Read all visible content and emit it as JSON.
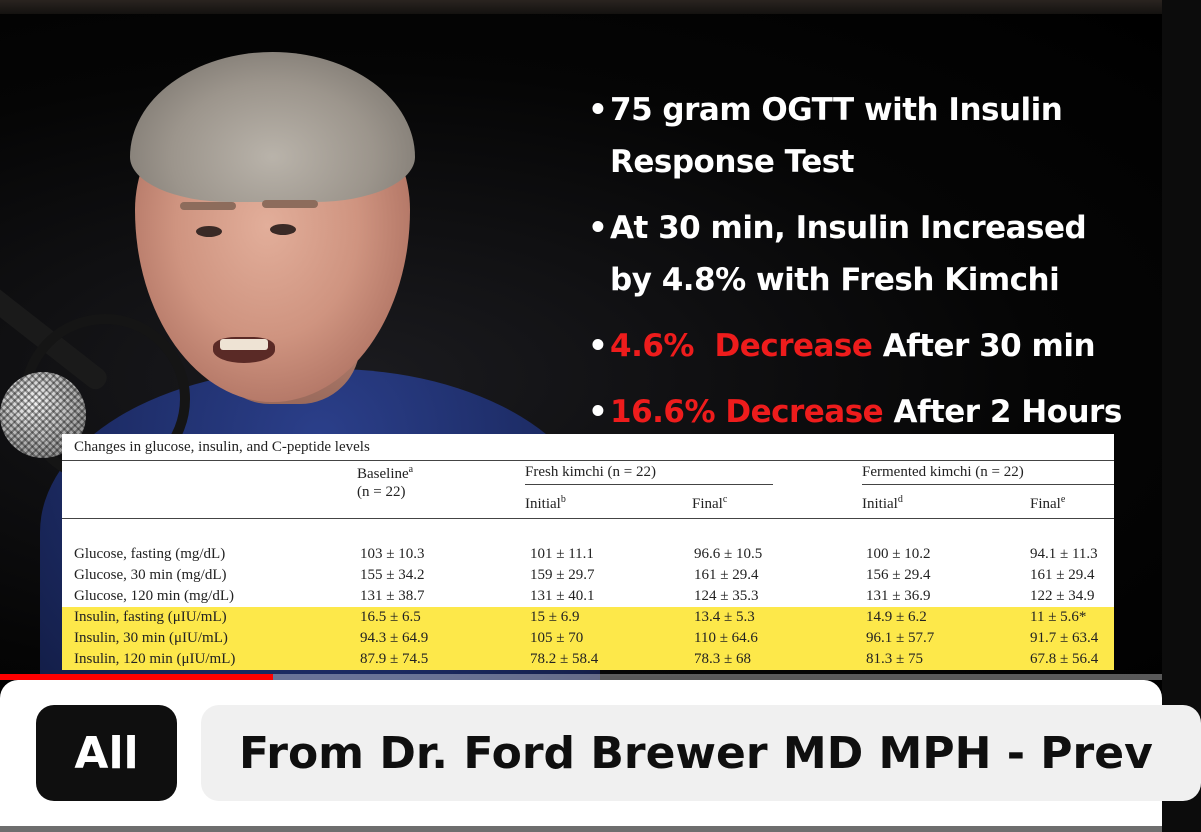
{
  "video": {
    "progress_fraction": 0.235,
    "slide": {
      "bullets": [
        {
          "parts": [
            {
              "text": "75 gram OGTT with Insulin",
              "red": false
            }
          ],
          "line2": "Response Test"
        },
        {
          "parts": [
            {
              "text": "At 30 min, Insulin Increased",
              "red": false
            }
          ],
          "line2": "by 4.8% with Fresh Kimchi"
        },
        {
          "parts": [
            {
              "text": "4.6%  Decrease",
              "red": true
            },
            {
              "text": " After 30 min",
              "red": false
            }
          ],
          "line2": ""
        },
        {
          "parts": [
            {
              "text": "16.6% Decrease",
              "red": true
            },
            {
              "text": " After 2 Hours",
              "red": false
            }
          ],
          "line2": ""
        }
      ],
      "bullet_glyph": "•"
    },
    "table": {
      "caption": "Changes in glucose, insulin, and C-peptide levels",
      "headers": {
        "baseline": "Baseline",
        "baseline_sup": "a",
        "baseline_n": "(n = 22)",
        "fresh": "Fresh kimchi (n = 22)",
        "fermented": "Fermented kimchi (n = 22)",
        "initial": "Initial",
        "initial_sup_fresh": "b",
        "final": "Final",
        "final_sup_fresh": "c",
        "initial_sup_ferm": "d",
        "final_sup_ferm": "e"
      },
      "rows": [
        {
          "label": "Glucose, fasting (mg/dL)",
          "cells": [
            "103 ± 10.3",
            "101 ± 11.1",
            "96.6 ± 10.5",
            "100 ± 10.2",
            "94.1 ± 11.3"
          ],
          "highlight": false
        },
        {
          "label": "Glucose, 30 min (mg/dL)",
          "cells": [
            "155 ± 34.2",
            "159 ± 29.7",
            "161 ± 29.4",
            "156 ± 29.4",
            "161 ± 29.4"
          ],
          "highlight": false
        },
        {
          "label": "Glucose, 120 min (mg/dL)",
          "cells": [
            "131 ± 38.7",
            "131 ± 40.1",
            "124 ± 35.3",
            "131 ± 36.9",
            "122 ± 34.9"
          ],
          "highlight": false
        },
        {
          "label": "Insulin, fasting (μIU/mL)",
          "cells": [
            "16.5 ± 6.5",
            "15 ± 6.9",
            "13.4 ± 5.3",
            "14.9 ± 6.2",
            "11 ± 5.6*"
          ],
          "highlight": true
        },
        {
          "label": "Insulin, 30 min (μIU/mL)",
          "cells": [
            "94.3 ± 64.9",
            "105 ± 70",
            "110 ± 64.6",
            "96.1 ± 57.7",
            "91.7 ± 63.4"
          ],
          "highlight": true
        },
        {
          "label": "Insulin, 120 min (μIU/mL)",
          "cells": [
            "87.9 ± 74.5",
            "78.2 ± 58.4",
            "78.3 ± 68",
            "81.3 ± 75",
            "67.8 ± 56.4"
          ],
          "highlight": true
        }
      ]
    }
  },
  "chips": {
    "all_label": "All",
    "channel_label": "From Dr. Ford Brewer MD MPH - Prev"
  }
}
